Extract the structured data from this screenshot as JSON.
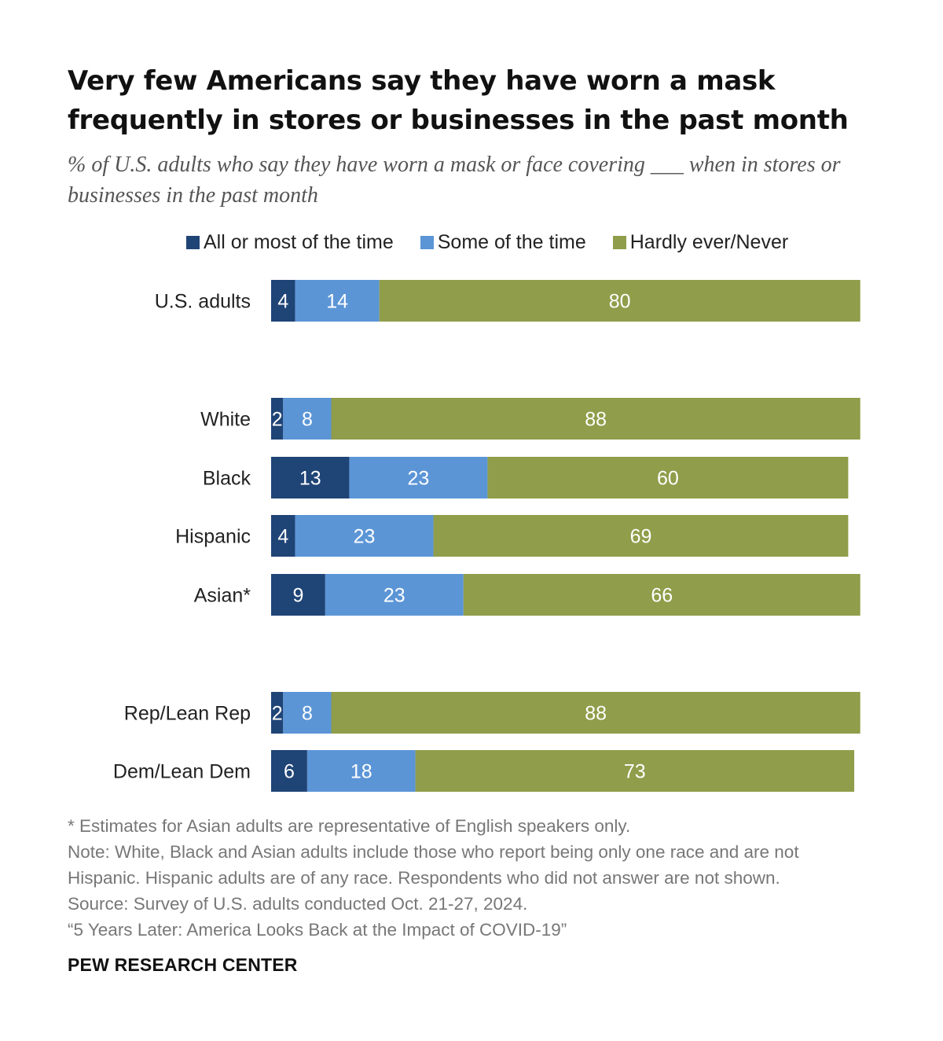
{
  "title": "Very few Americans say they have worn a mask frequently in stores or businesses in the past month",
  "subtitle": "% of U.S. adults who say they have worn a mask or face covering ___ when in stores or businesses in the past month",
  "colors": {
    "all_or_most": "#1f4476",
    "some": "#5b95d6",
    "hardly_ever": "#909d4a"
  },
  "chart_data": {
    "type": "bar",
    "orientation": "horizontal",
    "stacked": true,
    "title": "Very few Americans say they have worn a mask frequently in stores or businesses in the past month",
    "xlabel": "",
    "ylabel": "",
    "xlim": [
      0,
      100
    ],
    "legend_position": "top",
    "categories": [
      "U.S. adults",
      "White",
      "Black",
      "Hispanic",
      "Asian*",
      "Rep/Lean Rep",
      "Dem/Lean Dem"
    ],
    "series": [
      {
        "name": "All or most of the time",
        "values": [
          4,
          2,
          13,
          4,
          9,
          2,
          6
        ]
      },
      {
        "name": "Some of the time",
        "values": [
          14,
          8,
          23,
          23,
          23,
          8,
          18
        ]
      },
      {
        "name": "Hardly ever/Never",
        "values": [
          80,
          88,
          60,
          69,
          66,
          88,
          73
        ]
      }
    ]
  },
  "notes": [
    "* Estimates for Asian adults are representative of English speakers only.",
    "Note: White, Black and Asian adults include those who report being only one race and are not",
    "Hispanic. Hispanic adults are of any race. Respondents who did not answer are not shown.",
    "Source: Survey of U.S. adults conducted Oct. 21-27, 2024.",
    "“5 Years Later: America Looks Back at the Impact of COVID-19”"
  ],
  "source_org": "PEW RESEARCH CENTER"
}
